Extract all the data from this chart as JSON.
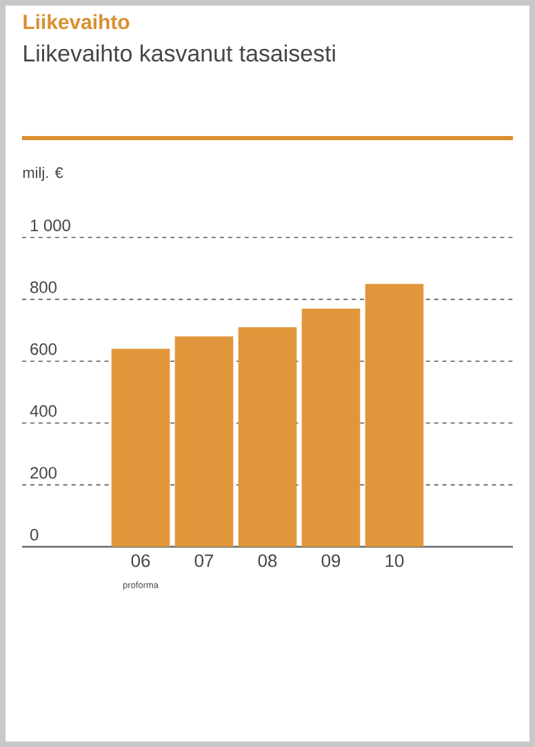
{
  "chart_data": {
    "type": "bar",
    "title": "Liikevaihto",
    "subtitle": "Liikevaihto kasvanut tasaisesti",
    "ylabel": "milj. €",
    "categories": [
      "06",
      "07",
      "08",
      "09",
      "10"
    ],
    "values": [
      640,
      680,
      710,
      770,
      850
    ],
    "color": "#e0973b",
    "ylim": [
      0,
      1000
    ],
    "yticks": [
      0,
      200,
      400,
      600,
      800,
      {
        "value": 1000,
        "label": "1 000"
      }
    ],
    "grid": "y",
    "annotations": [
      "proforma"
    ]
  }
}
